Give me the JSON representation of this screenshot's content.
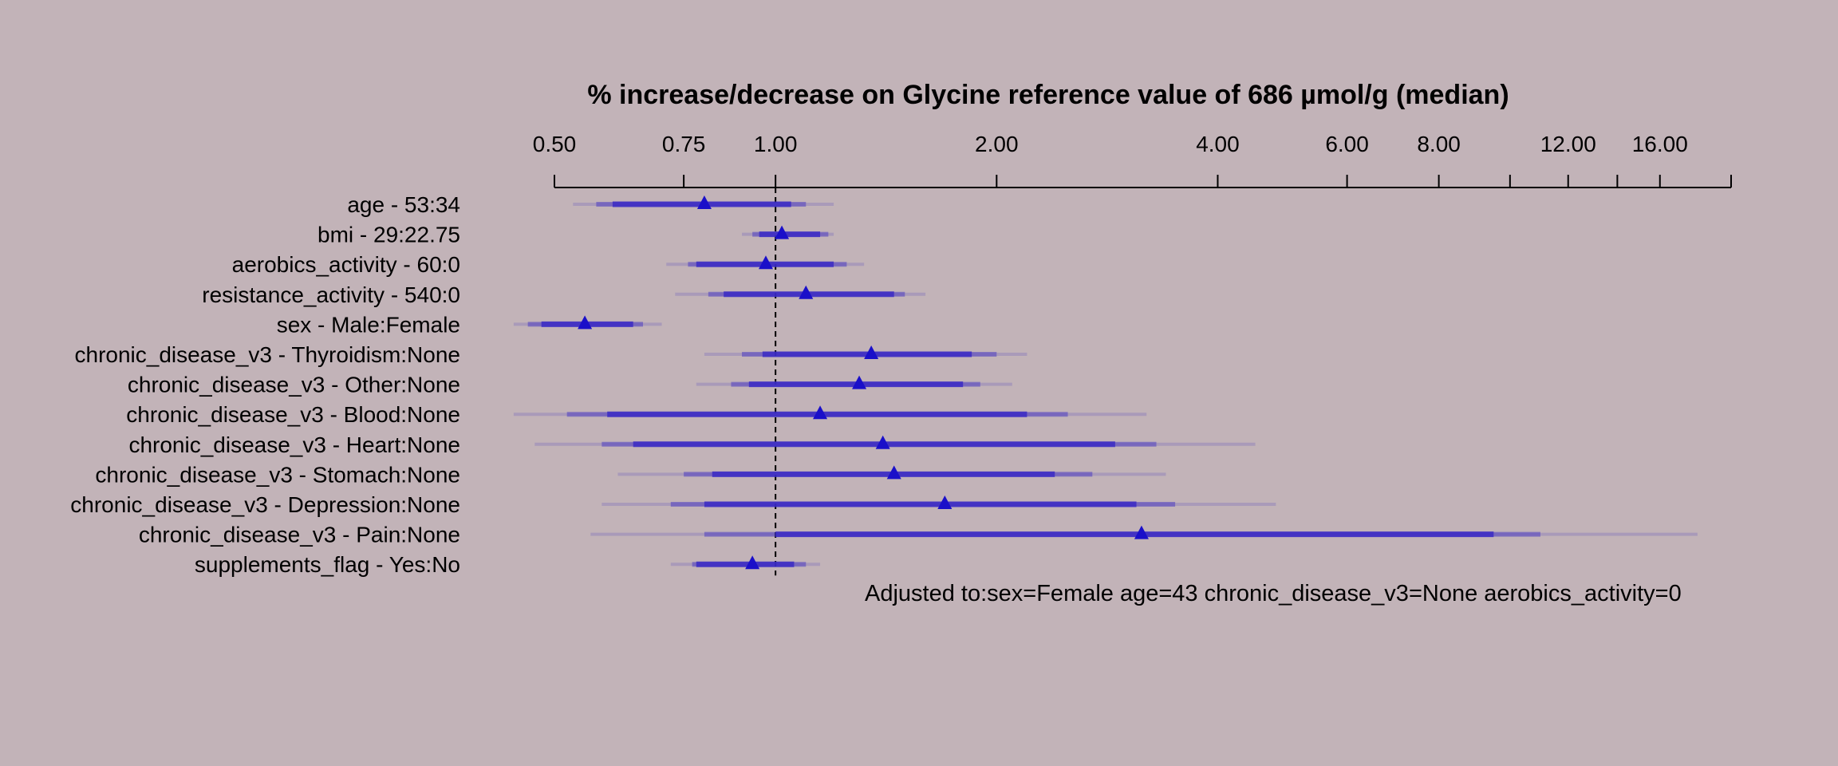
{
  "chart_data": {
    "type": "forest",
    "title": "% increase/decrease on Glycine reference value of 686 µmol/g (median)",
    "x_scale": "log",
    "xlim": [
      0.5,
      20.0
    ],
    "reference_line": 1.0,
    "ticks": [
      {
        "value": 0.5,
        "label": "0.50"
      },
      {
        "value": 0.75,
        "label": "0.75"
      },
      {
        "value": 1.0,
        "label": "1.00"
      },
      {
        "value": 2.0,
        "label": "2.00"
      },
      {
        "value": 4.0,
        "label": "4.00"
      },
      {
        "value": 6.0,
        "label": "6.00"
      },
      {
        "value": 8.0,
        "label": "8.00"
      },
      {
        "value": 10.0,
        "label": ""
      },
      {
        "value": 12.0,
        "label": "12.00"
      },
      {
        "value": 14.0,
        "label": ""
      },
      {
        "value": 16.0,
        "label": "16.00"
      },
      {
        "value": 20.0,
        "label": ""
      }
    ],
    "rows": [
      {
        "label": "age - 53:34",
        "estimate": 0.8,
        "ci_inner": [
          0.6,
          1.05
        ],
        "ci_mid": [
          0.57,
          1.1
        ],
        "ci_outer": [
          0.53,
          1.2
        ]
      },
      {
        "label": "bmi - 29:22.75",
        "estimate": 1.02,
        "ci_inner": [
          0.95,
          1.15
        ],
        "ci_mid": [
          0.93,
          1.18
        ],
        "ci_outer": [
          0.9,
          1.2
        ]
      },
      {
        "label": "aerobics_activity - 60:0",
        "estimate": 0.97,
        "ci_inner": [
          0.78,
          1.2
        ],
        "ci_mid": [
          0.76,
          1.25
        ],
        "ci_outer": [
          0.71,
          1.32
        ]
      },
      {
        "label": "resistance_activity - 540:0",
        "estimate": 1.1,
        "ci_inner": [
          0.85,
          1.45
        ],
        "ci_mid": [
          0.81,
          1.5
        ],
        "ci_outer": [
          0.73,
          1.6
        ]
      },
      {
        "label": "sex - Male:Female",
        "estimate": 0.55,
        "ci_inner": [
          0.48,
          0.64
        ],
        "ci_mid": [
          0.46,
          0.66
        ],
        "ci_outer": [
          0.44,
          0.7
        ]
      },
      {
        "label": "chronic_disease_v3 - Thyroidism:None",
        "estimate": 1.35,
        "ci_inner": [
          0.96,
          1.85
        ],
        "ci_mid": [
          0.9,
          2.0
        ],
        "ci_outer": [
          0.8,
          2.2
        ]
      },
      {
        "label": "chronic_disease_v3 - Other:None",
        "estimate": 1.3,
        "ci_inner": [
          0.92,
          1.8
        ],
        "ci_mid": [
          0.87,
          1.9
        ],
        "ci_outer": [
          0.78,
          2.1
        ]
      },
      {
        "label": "chronic_disease_v3 - Blood:None",
        "estimate": 1.15,
        "ci_inner": [
          0.59,
          2.2
        ],
        "ci_mid": [
          0.52,
          2.5
        ],
        "ci_outer": [
          0.44,
          3.2
        ]
      },
      {
        "label": "chronic_disease_v3 - Heart:None",
        "estimate": 1.4,
        "ci_inner": [
          0.64,
          2.9
        ],
        "ci_mid": [
          0.58,
          3.3
        ],
        "ci_outer": [
          0.47,
          4.5
        ]
      },
      {
        "label": "chronic_disease_v3 - Stomach:None",
        "estimate": 1.45,
        "ci_inner": [
          0.82,
          2.4
        ],
        "ci_mid": [
          0.75,
          2.7
        ],
        "ci_outer": [
          0.61,
          3.4
        ]
      },
      {
        "label": "chronic_disease_v3 - Depression:None",
        "estimate": 1.7,
        "ci_inner": [
          0.8,
          3.1
        ],
        "ci_mid": [
          0.72,
          3.5
        ],
        "ci_outer": [
          0.58,
          4.8
        ]
      },
      {
        "label": "chronic_disease_v3 - Pain:None",
        "estimate": 3.15,
        "ci_inner": [
          1.0,
          9.5
        ],
        "ci_mid": [
          0.8,
          11.0
        ],
        "ci_outer": [
          0.56,
          18.0
        ]
      },
      {
        "label": "supplements_flag - Yes:No",
        "estimate": 0.93,
        "ci_inner": [
          0.78,
          1.06
        ],
        "ci_mid": [
          0.77,
          1.1
        ],
        "ci_outer": [
          0.72,
          1.15
        ]
      }
    ],
    "annotation": "Adjusted to:sex=Female age=43 chronic_disease_v3=None aerobics_activity=0",
    "colors": {
      "background": "#c2b3b8",
      "estimate": "#1a0fc9",
      "ci": "#3a2ac4",
      "axis": "#000000"
    }
  }
}
